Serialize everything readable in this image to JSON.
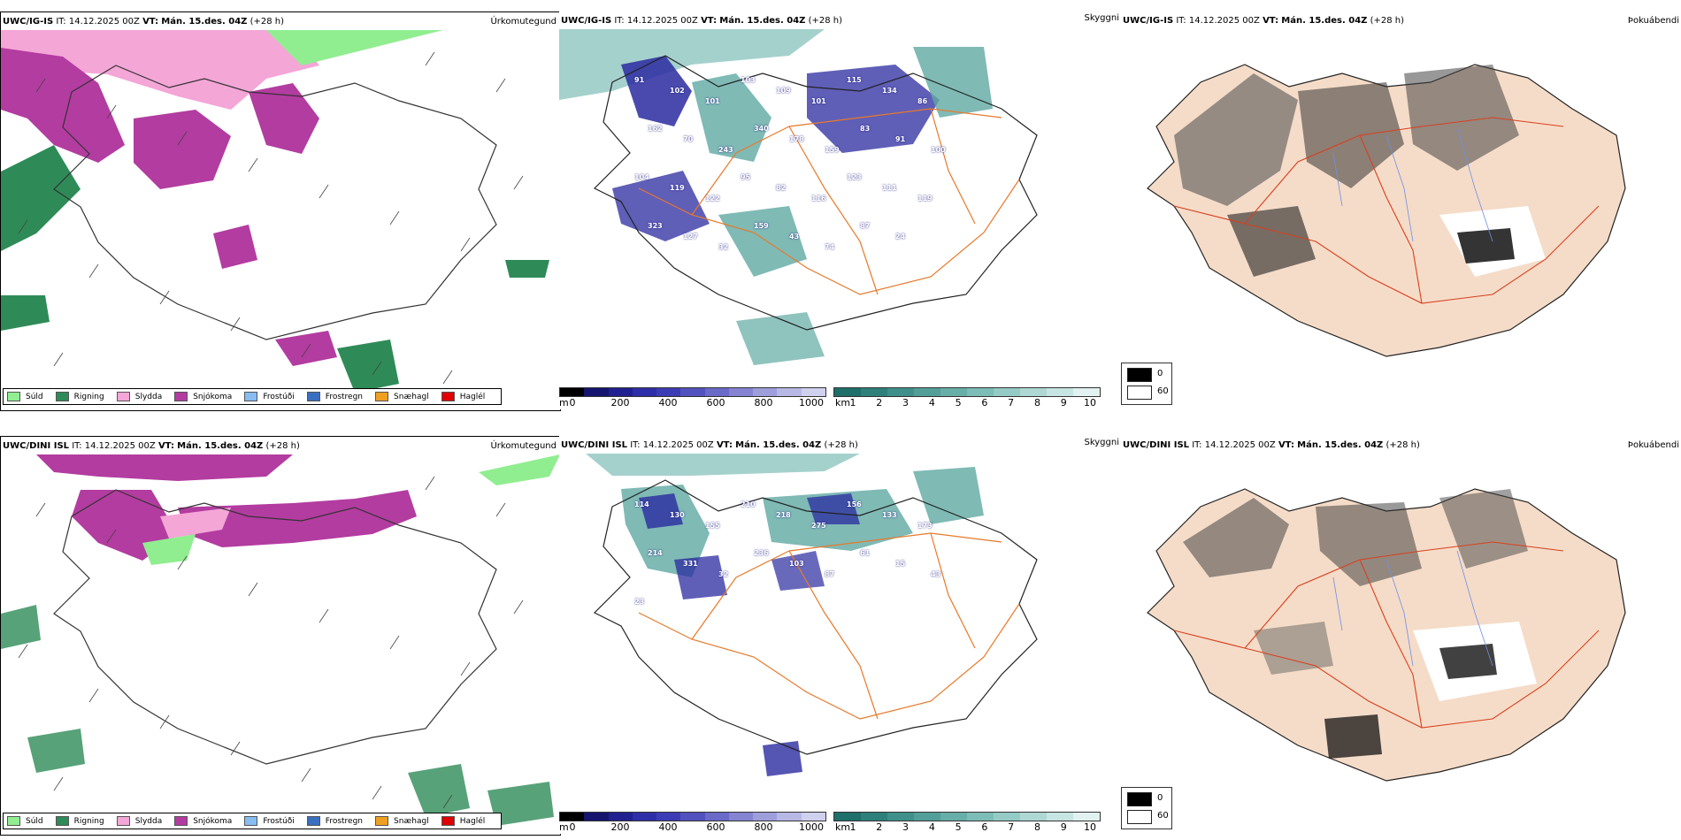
{
  "rows": [
    {
      "model": "UWC/IG-IS",
      "it_label": "IT:",
      "it_value": "14.12.2025 00Z",
      "vt_label": "VT:",
      "vt_value": "Mán. 15.des. 04Z",
      "lead": "(+28 h)",
      "precip_panel_title": "Úrkomutegund",
      "cloud_panel_title": "Skyggni",
      "fog_panel_title": "Þokuábendi",
      "cloud_numbers": [
        "91",
        "102",
        "101",
        "103",
        "109",
        "101",
        "115",
        "134",
        "86",
        "162",
        "70",
        "243",
        "340",
        "178",
        "159",
        "83",
        "91",
        "100",
        "104",
        "119",
        "122",
        "95",
        "82",
        "116",
        "123",
        "111",
        "119",
        "323",
        "127",
        "32",
        "159",
        "43",
        "74",
        "87",
        "24"
      ]
    },
    {
      "model": "UWC/DINI ISL",
      "it_label": "IT:",
      "it_value": "14.12.2025 00Z",
      "vt_label": "VT:",
      "vt_value": "Mán. 15.des. 04Z",
      "lead": "(+28 h)",
      "precip_panel_title": "Úrkomutegund",
      "cloud_panel_title": "Skyggni",
      "fog_panel_title": "Þokuábendi",
      "cloud_numbers": [
        "114",
        "130",
        "155",
        "210",
        "218",
        "275",
        "156",
        "133",
        "173",
        "214",
        "331",
        "32",
        "236",
        "103",
        "87",
        "61",
        "15",
        "43",
        "23"
      ]
    }
  ],
  "precip_legend": [
    {
      "label": "Súld",
      "color": "#90ee90"
    },
    {
      "label": "Rigning",
      "color": "#2e8b57"
    },
    {
      "label": "Slydda",
      "color": "#f4a6d7"
    },
    {
      "label": "Snjókoma",
      "color": "#b33ca0"
    },
    {
      "label": "Frostúði",
      "color": "#87bdf0"
    },
    {
      "label": "Frostregn",
      "color": "#3a6fc0"
    },
    {
      "label": "Snæhagl",
      "color": "#f0a020"
    },
    {
      "label": "Haglél",
      "color": "#e00000"
    }
  ],
  "cloud_base_scale": {
    "unit": "m",
    "ticks": [
      "0",
      "200",
      "400",
      "600",
      "800",
      "1000"
    ],
    "colors": [
      "#000000",
      "#151570",
      "#202090",
      "#2e2ea8",
      "#3c3cb5",
      "#5252bf",
      "#6a6ac8",
      "#8484d2",
      "#9e9edc",
      "#b8b8e6",
      "#d0d0ef"
    ]
  },
  "visibility_scale": {
    "unit": "km",
    "ticks": [
      "1",
      "2",
      "3",
      "4",
      "5",
      "6",
      "7",
      "8",
      "9",
      "10"
    ],
    "colors": [
      "#1f6f6a",
      "#2e807a",
      "#3f908a",
      "#529f99",
      "#67aea8",
      "#7dbdb7",
      "#95cbc6",
      "#aed8d4",
      "#c7e5e2",
      "#e1f2f0"
    ]
  },
  "fog_legend": {
    "high": "0",
    "low": "60",
    "high_color": "#000000",
    "low_color": "#ffffff"
  },
  "colors": {
    "snow": "#b33ca0",
    "sleet": "#f4a6d7",
    "rain": "#2e8b57",
    "drizzle": "#90ee90",
    "cloud_teal": "#5fa9a2",
    "cloud_blue": "#2a2aa0",
    "roads": "#e8792a",
    "fog_land": "#f5dcc8",
    "fog_roads": "#d9401e",
    "rivers": "#6f8fe6"
  }
}
